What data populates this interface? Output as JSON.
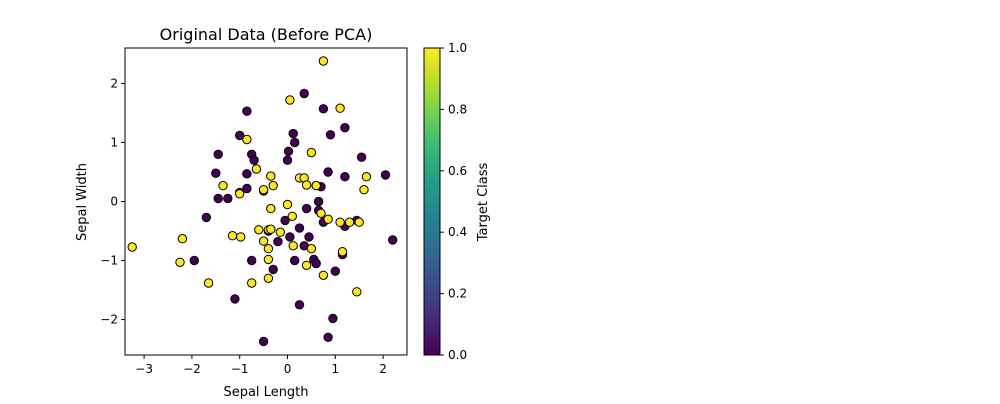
{
  "chart_data": {
    "type": "scatter",
    "title": "Original Data (Before PCA)",
    "xlabel": "Sepal Length",
    "ylabel": "Sepal Width",
    "xlim": [
      -3.4,
      2.5
    ],
    "ylim": [
      -2.6,
      2.6
    ],
    "xticks": [
      -3,
      -2,
      -1,
      0,
      1,
      2
    ],
    "yticks": [
      -2,
      -1,
      0,
      1,
      2
    ],
    "grid": false,
    "marker_edge_color": "#000000",
    "colorbar": {
      "label": "Target Class",
      "range": [
        0.0,
        1.0
      ],
      "ticks": [
        "0.0",
        "0.2",
        "0.4",
        "0.6",
        "0.8",
        "1.0"
      ],
      "colormap": "viridis",
      "colormap_stops": [
        "#440154",
        "#482878",
        "#3e4a89",
        "#31688e",
        "#26828e",
        "#1f9e89",
        "#35b779",
        "#6ece58",
        "#b5de2b",
        "#fde725"
      ]
    },
    "series": [
      {
        "class_value": 0,
        "color": "#440154",
        "points": [
          [
            -0.85,
            1.53
          ],
          [
            -1.0,
            1.12
          ],
          [
            0.12,
            1.15
          ],
          [
            0.35,
            1.83
          ],
          [
            0.75,
            1.57
          ],
          [
            0.9,
            1.13
          ],
          [
            1.2,
            1.25
          ],
          [
            -1.45,
            0.8
          ],
          [
            -0.75,
            0.8
          ],
          [
            -0.7,
            0.7
          ],
          [
            0.0,
            0.7
          ],
          [
            0.02,
            0.85
          ],
          [
            0.15,
            1.0
          ],
          [
            1.55,
            0.75
          ],
          [
            -1.5,
            0.48
          ],
          [
            -0.85,
            0.47
          ],
          [
            0.85,
            0.5
          ],
          [
            1.2,
            0.42
          ],
          [
            2.05,
            0.45
          ],
          [
            -1.45,
            0.05
          ],
          [
            -1.25,
            0.05
          ],
          [
            -1.0,
            0.15
          ],
          [
            -0.85,
            0.22
          ],
          [
            -0.5,
            0.18
          ],
          [
            0.6,
            0.27
          ],
          [
            0.7,
            0.25
          ],
          [
            0.65,
            0.0
          ],
          [
            -1.7,
            -0.27
          ],
          [
            0.4,
            -0.12
          ],
          [
            0.65,
            -0.15
          ],
          [
            -0.05,
            -0.32
          ],
          [
            0.75,
            -0.35
          ],
          [
            1.2,
            -0.42
          ],
          [
            1.45,
            -0.32
          ],
          [
            -0.4,
            -0.5
          ],
          [
            0.25,
            -0.45
          ],
          [
            0.05,
            -0.6
          ],
          [
            0.45,
            -0.6
          ],
          [
            -0.2,
            -0.68
          ],
          [
            0.35,
            -0.75
          ],
          [
            1.15,
            -0.9
          ],
          [
            2.2,
            -0.65
          ],
          [
            -1.95,
            -1.0
          ],
          [
            -0.75,
            -1.0
          ],
          [
            0.15,
            -1.0
          ],
          [
            0.55,
            -0.98
          ],
          [
            0.6,
            -1.05
          ],
          [
            -0.3,
            -1.15
          ],
          [
            1.0,
            -1.18
          ],
          [
            -1.1,
            -1.65
          ],
          [
            0.25,
            -1.75
          ],
          [
            0.95,
            -1.98
          ],
          [
            -0.5,
            -2.37
          ],
          [
            0.85,
            -2.3
          ]
        ]
      },
      {
        "class_value": 1,
        "color": "#fde725",
        "points": [
          [
            0.75,
            2.38
          ],
          [
            0.05,
            1.72
          ],
          [
            1.1,
            1.58
          ],
          [
            -0.85,
            1.05
          ],
          [
            0.5,
            0.83
          ],
          [
            -0.65,
            0.55
          ],
          [
            -0.35,
            0.43
          ],
          [
            0.25,
            0.4
          ],
          [
            0.35,
            0.4
          ],
          [
            1.65,
            0.42
          ],
          [
            -1.35,
            0.27
          ],
          [
            -0.3,
            0.27
          ],
          [
            0.4,
            0.28
          ],
          [
            0.6,
            0.27
          ],
          [
            1.6,
            0.2
          ],
          [
            -0.5,
            0.2
          ],
          [
            -1.0,
            0.13
          ],
          [
            -0.35,
            -0.12
          ],
          [
            0.0,
            -0.05
          ],
          [
            0.7,
            -0.2
          ],
          [
            0.1,
            -0.25
          ],
          [
            0.85,
            -0.3
          ],
          [
            1.1,
            -0.35
          ],
          [
            1.3,
            -0.35
          ],
          [
            1.5,
            -0.35
          ],
          [
            -0.4,
            -0.48
          ],
          [
            -0.35,
            -0.47
          ],
          [
            -0.15,
            -0.52
          ],
          [
            -0.6,
            -0.48
          ],
          [
            -1.15,
            -0.58
          ],
          [
            -0.98,
            -0.6
          ],
          [
            -2.2,
            -0.63
          ],
          [
            -0.5,
            -0.67
          ],
          [
            0.12,
            -0.75
          ],
          [
            0.5,
            -0.8
          ],
          [
            -0.4,
            -0.8
          ],
          [
            1.15,
            -0.85
          ],
          [
            -3.25,
            -0.77
          ],
          [
            -2.25,
            -1.03
          ],
          [
            -0.4,
            -0.98
          ],
          [
            0.4,
            -1.08
          ],
          [
            0.75,
            -1.25
          ],
          [
            -0.4,
            -1.3
          ],
          [
            -1.65,
            -1.38
          ],
          [
            -0.75,
            -1.38
          ],
          [
            1.45,
            -1.53
          ]
        ]
      }
    ]
  }
}
